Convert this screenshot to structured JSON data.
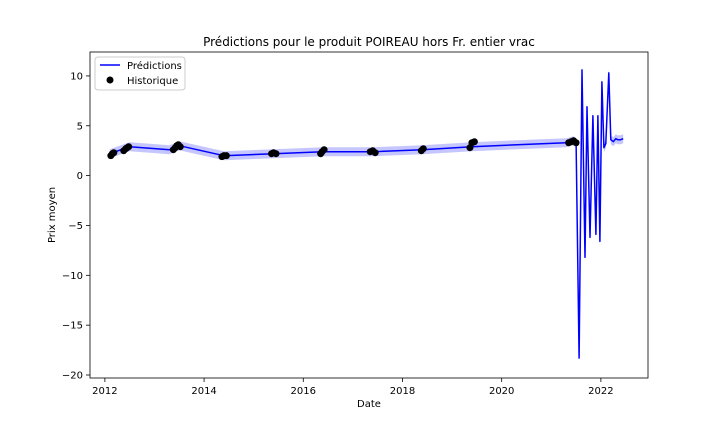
{
  "chart_data": {
    "type": "line",
    "title": "Prédictions pour le produit POIREAU hors Fr. entier vrac",
    "xlabel": "Date",
    "ylabel": "Prix moyen",
    "xlim": [
      2011.7,
      2022.95
    ],
    "ylim": [
      -20.3,
      12.4
    ],
    "x_ticks": [
      2012,
      2014,
      2016,
      2018,
      2020,
      2022
    ],
    "x_tick_labels": [
      "2012",
      "2014",
      "2016",
      "2018",
      "2020",
      "2022"
    ],
    "y_ticks": [
      -20,
      -15,
      -10,
      -5,
      0,
      5,
      10
    ],
    "y_tick_labels": [
      "−20",
      "−15",
      "−10",
      "−5",
      "0",
      "5",
      "10"
    ],
    "legend": {
      "placement": "top-left",
      "entries": [
        {
          "label": "Prédictions",
          "kind": "line",
          "color": "#0000ff"
        },
        {
          "label": "Historique",
          "kind": "marker",
          "color": "#000000"
        }
      ]
    },
    "colors": {
      "prediction": "#0000ff",
      "band": "#b3b3ff",
      "history": "#000000"
    },
    "series": [
      {
        "name": "Prédictions",
        "x": [
          2012.1,
          2012.5,
          2013.3,
          2013.5,
          2014.4,
          2015.4,
          2016.4,
          2017.4,
          2018.4,
          2019.4,
          2021.3,
          2021.45,
          2021.5,
          2021.56,
          2021.62,
          2021.68,
          2021.72,
          2021.78,
          2021.84,
          2021.9,
          2021.94,
          2021.98,
          2022.02,
          2022.06,
          2022.1,
          2022.16,
          2022.2,
          2022.25,
          2022.3,
          2022.34,
          2022.4,
          2022.45
        ],
        "y": [
          2.2,
          2.9,
          2.6,
          3.0,
          2.0,
          2.2,
          2.4,
          2.4,
          2.6,
          2.9,
          3.3,
          3.5,
          3.3,
          -18.3,
          10.6,
          -8.2,
          6.9,
          -6.2,
          6.0,
          -5.9,
          6.0,
          -6.6,
          9.4,
          2.8,
          3.2,
          10.3,
          3.6,
          3.4,
          3.7,
          3.6,
          3.6,
          3.7
        ],
        "band_halfwidth": 0.45
      },
      {
        "name": "Historique",
        "x": [
          2012.12,
          2012.15,
          2012.18,
          2012.38,
          2012.42,
          2012.45,
          2012.48,
          2013.38,
          2013.42,
          2013.45,
          2013.48,
          2013.52,
          2014.36,
          2014.4,
          2014.45,
          2015.36,
          2015.4,
          2015.45,
          2016.35,
          2016.38,
          2016.42,
          2017.35,
          2017.4,
          2017.45,
          2018.38,
          2018.42,
          2019.36,
          2019.4,
          2019.45,
          2021.35,
          2021.4,
          2021.45,
          2021.5
        ],
        "y": [
          2.0,
          2.2,
          2.3,
          2.5,
          2.7,
          2.8,
          2.9,
          2.6,
          2.8,
          3.0,
          3.1,
          2.9,
          1.9,
          2.0,
          2.0,
          2.2,
          2.3,
          2.2,
          2.2,
          2.4,
          2.6,
          2.4,
          2.5,
          2.3,
          2.5,
          2.7,
          2.8,
          3.3,
          3.4,
          3.3,
          3.4,
          3.5,
          3.3
        ]
      }
    ]
  }
}
